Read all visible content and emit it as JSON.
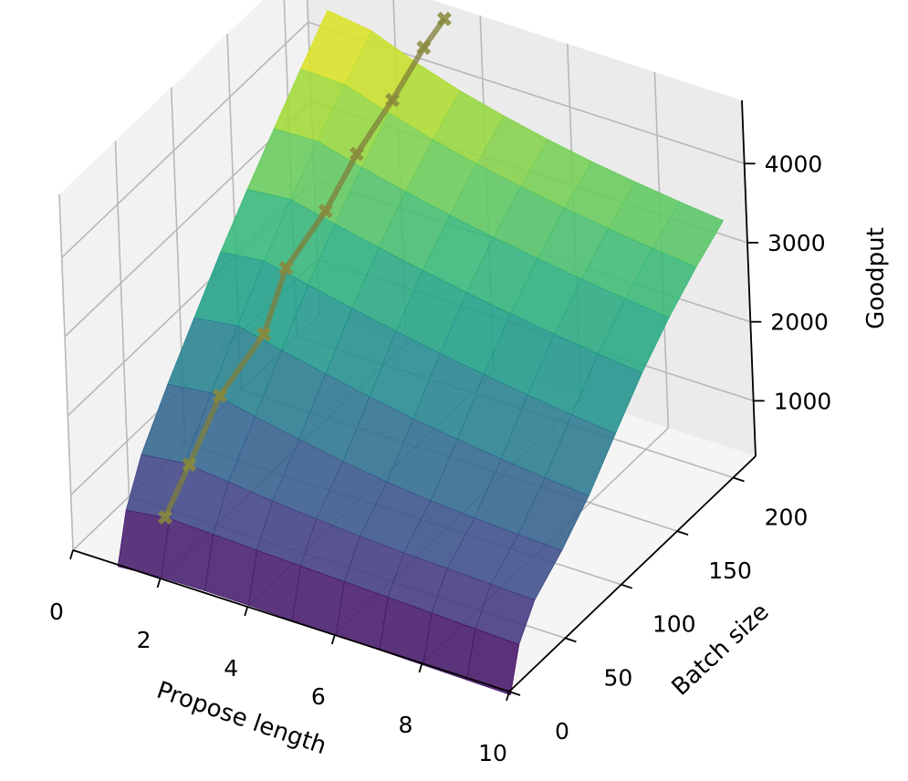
{
  "chart_data": {
    "type": "surface3d",
    "xlabel": "Propose length",
    "ylabel": "Batch size",
    "zlabel": "Goodput",
    "xlim": [
      0,
      10
    ],
    "ylim": [
      0,
      220
    ],
    "zlim": [
      300,
      4800
    ],
    "x_ticks": [
      "0",
      "2",
      "4",
      "6",
      "8",
      "10"
    ],
    "y_ticks": [
      "0",
      "50",
      "100",
      "150",
      "200"
    ],
    "z_ticks": [
      "1000",
      "2000",
      "3000",
      "4000"
    ],
    "colormap": "viridis",
    "grid": true,
    "surface": {
      "x": [
        1,
        2,
        3,
        4,
        5,
        6,
        7,
        8,
        9,
        10
      ],
      "y": [
        1,
        10,
        25,
        50,
        75,
        100,
        125,
        150,
        175,
        200
      ],
      "z": [
        [
          260,
          300,
          310,
          305,
          295,
          285,
          275,
          265,
          255,
          245
        ],
        [
          850,
          920,
          900,
          880,
          860,
          840,
          820,
          800,
          780,
          760
        ],
        [
          1350,
          1420,
          1360,
          1300,
          1250,
          1210,
          1180,
          1160,
          1140,
          1120
        ],
        [
          1900,
          1970,
          1850,
          1740,
          1640,
          1560,
          1500,
          1460,
          1430,
          1410
        ],
        [
          2400,
          2480,
          2350,
          2230,
          2120,
          2020,
          1940,
          1870,
          1810,
          1760
        ],
        [
          2900,
          2960,
          2840,
          2720,
          2610,
          2510,
          2420,
          2340,
          2270,
          2210
        ],
        [
          3350,
          3400,
          3270,
          3150,
          3040,
          2940,
          2850,
          2770,
          2700,
          2640
        ],
        [
          3780,
          3800,
          3650,
          3520,
          3400,
          3300,
          3210,
          3130,
          3060,
          3000
        ],
        [
          4200,
          4180,
          4000,
          3840,
          3710,
          3600,
          3510,
          3430,
          3360,
          3300
        ],
        [
          4600,
          4520,
          4300,
          4120,
          3980,
          3860,
          3760,
          3680,
          3610,
          3550
        ]
      ]
    },
    "optimal_path": {
      "x": [
        1.9,
        2.1,
        2.2,
        2.6,
        2.5,
        2.8,
        2.9,
        3.1,
        3.2,
        3.3
      ],
      "y": [
        10,
        25,
        50,
        75,
        100,
        125,
        150,
        175,
        200,
        215
      ],
      "z": [
        920,
        1420,
        1970,
        2480,
        2960,
        3400,
        3800,
        4180,
        4520,
        4700
      ]
    }
  }
}
